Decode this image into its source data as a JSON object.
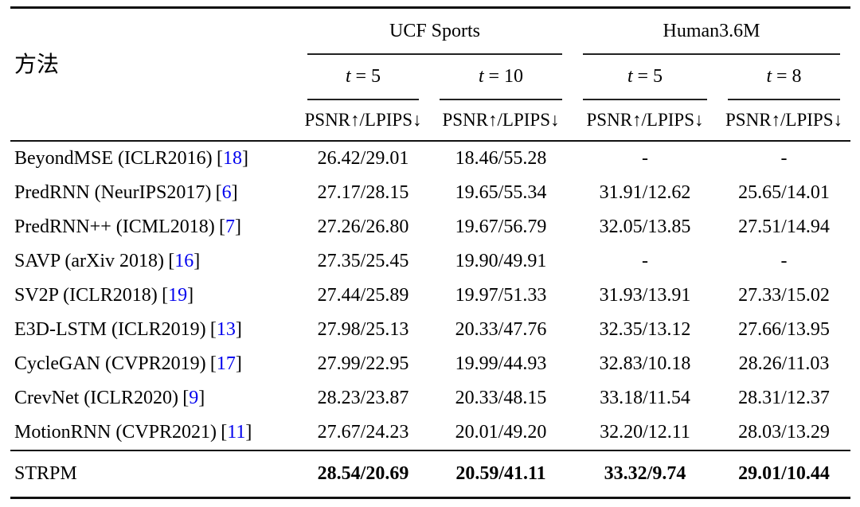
{
  "page": {
    "background": "#ffffff",
    "text_color": "#000000",
    "link_color": "#0000ee"
  },
  "header": {
    "method_label": "方法",
    "groups": [
      {
        "label": "UCF Sports"
      },
      {
        "label": "Human3.6M"
      }
    ],
    "subcolumns": [
      {
        "var": "t",
        "eq": "= 5"
      },
      {
        "var": "t",
        "eq": "= 10"
      },
      {
        "var": "t",
        "eq": "= 5"
      },
      {
        "var": "t",
        "eq": "= 8"
      }
    ],
    "metric_label": "PSNR↑/LPIPS↓"
  },
  "punctuation": {
    "bracket_open": "[",
    "bracket_close": "]"
  },
  "rows": [
    {
      "method": "BeyondMSE (ICLR2016)",
      "cite": "18",
      "values": [
        "26.42/29.01",
        "18.46/55.28",
        "-",
        "-"
      ]
    },
    {
      "method": "PredRNN (NeurIPS2017)",
      "cite": "6",
      "values": [
        "27.17/28.15",
        "19.65/55.34",
        "31.91/12.62",
        "25.65/14.01"
      ]
    },
    {
      "method": "PredRNN++ (ICML2018)",
      "cite": "7",
      "values": [
        "27.26/26.80",
        "19.67/56.79",
        "32.05/13.85",
        "27.51/14.94"
      ]
    },
    {
      "method": "SAVP (arXiv 2018)",
      "cite": "16",
      "values": [
        "27.35/25.45",
        "19.90/49.91",
        "-",
        "-"
      ]
    },
    {
      "method": "SV2P (ICLR2018)",
      "cite": "19",
      "values": [
        "27.44/25.89",
        "19.97/51.33",
        "31.93/13.91",
        "27.33/15.02"
      ]
    },
    {
      "method": "E3D-LSTM (ICLR2019)",
      "cite": "13",
      "values": [
        "27.98/25.13",
        "20.33/47.76",
        "32.35/13.12",
        "27.66/13.95"
      ]
    },
    {
      "method": "CycleGAN (CVPR2019)",
      "cite": "17",
      "values": [
        "27.99/22.95",
        "19.99/44.93",
        "32.83/10.18",
        "28.26/11.03"
      ]
    },
    {
      "method": "CrevNet (ICLR2020)",
      "cite": "9",
      "values": [
        "28.23/23.87",
        "20.33/48.15",
        "33.18/11.54",
        "28.31/12.37"
      ]
    },
    {
      "method": "MotionRNN (CVPR2021)",
      "cite": "11",
      "values": [
        "27.67/24.23",
        "20.01/49.20",
        "32.20/12.11",
        "28.03/13.29"
      ]
    }
  ],
  "final_row": {
    "method": "STRPM",
    "values": [
      "28.54/20.69",
      "20.59/41.11",
      "33.32/9.74",
      "29.01/10.44"
    ]
  }
}
